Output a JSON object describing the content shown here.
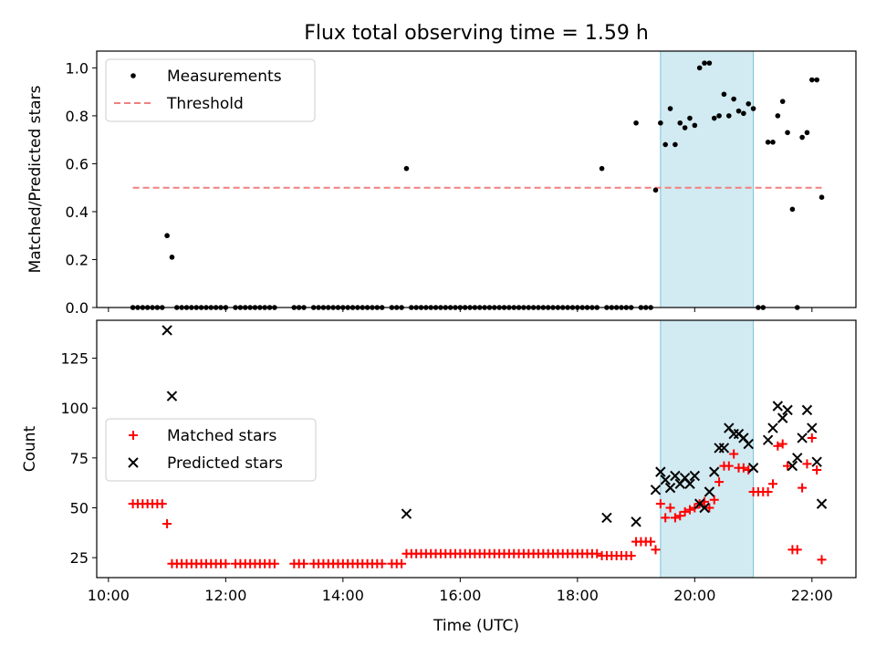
{
  "chart_data": [
    {
      "type": "scatter",
      "title": "Flux total observing time = 1.59 h",
      "ylabel": "Matched/Predicted stars",
      "ylim": [
        0,
        1.07
      ],
      "xlim_hours": [
        9.8,
        22.75
      ],
      "yticks": [
        "0.0",
        "0.2",
        "0.4",
        "0.6",
        "0.8",
        "1.0"
      ],
      "legend": {
        "position": "upper-left",
        "entries": [
          "Measurements",
          "Threshold"
        ]
      },
      "shaded_interval": {
        "start": "19:25",
        "end": "21:00",
        "color": "#add8e6"
      },
      "threshold": {
        "value": 0.5,
        "start": "10:25",
        "end": "22:10",
        "color": "#f08080"
      },
      "series": [
        {
          "name": "Measurements",
          "color": "#000000",
          "x": [
            "10:25",
            "10:30",
            "10:35",
            "10:40",
            "10:45",
            "10:50",
            "10:55",
            "11:00",
            "11:05",
            "11:10",
            "11:15",
            "11:20",
            "11:25",
            "11:30",
            "11:35",
            "11:40",
            "11:45",
            "11:50",
            "11:55",
            "12:00",
            "12:10",
            "12:15",
            "12:20",
            "12:25",
            "12:30",
            "12:35",
            "12:40",
            "12:45",
            "12:50",
            "13:10",
            "13:15",
            "13:20",
            "13:30",
            "13:35",
            "13:40",
            "13:45",
            "13:50",
            "13:55",
            "14:00",
            "14:05",
            "14:10",
            "14:15",
            "14:20",
            "14:25",
            "14:30",
            "14:35",
            "14:40",
            "14:50",
            "14:55",
            "15:00",
            "15:05",
            "15:10",
            "15:15",
            "15:20",
            "15:25",
            "15:30",
            "15:35",
            "15:40",
            "15:45",
            "15:50",
            "15:55",
            "16:00",
            "16:05",
            "16:10",
            "16:15",
            "16:20",
            "16:25",
            "16:30",
            "16:35",
            "16:40",
            "16:45",
            "16:50",
            "16:55",
            "17:00",
            "17:05",
            "17:10",
            "17:15",
            "17:20",
            "17:25",
            "17:30",
            "17:35",
            "17:40",
            "17:45",
            "17:50",
            "17:55",
            "18:00",
            "18:05",
            "18:10",
            "18:15",
            "18:20",
            "18:25",
            "18:30",
            "18:35",
            "18:40",
            "18:45",
            "18:50",
            "18:55",
            "19:00",
            "19:05",
            "19:10",
            "19:15",
            "19:20",
            "19:25",
            "19:30",
            "19:35",
            "19:40",
            "19:45",
            "19:50",
            "19:55",
            "20:00",
            "20:05",
            "20:10",
            "20:15",
            "20:20",
            "20:25",
            "20:30",
            "20:35",
            "20:40",
            "20:45",
            "20:50",
            "20:55",
            "21:00",
            "21:05",
            "21:10",
            "21:15",
            "21:20",
            "21:25",
            "21:30",
            "21:35",
            "21:40",
            "21:45",
            "21:50",
            "21:55",
            "22:00",
            "22:05",
            "22:10"
          ],
          "y": [
            0,
            0,
            0,
            0,
            0,
            0,
            0,
            0.3,
            0.21,
            0,
            0,
            0,
            0,
            0,
            0,
            0,
            0,
            0,
            0,
            0,
            0,
            0,
            0,
            0,
            0,
            0,
            0,
            0,
            0,
            0,
            0,
            0,
            0,
            0,
            0,
            0,
            0,
            0,
            0,
            0,
            0,
            0,
            0,
            0,
            0,
            0,
            0,
            0,
            0,
            0,
            0.58,
            0,
            0,
            0,
            0,
            0,
            0,
            0,
            0,
            0,
            0,
            0,
            0,
            0,
            0,
            0,
            0,
            0,
            0,
            0,
            0,
            0,
            0,
            0,
            0,
            0,
            0,
            0,
            0,
            0,
            0,
            0,
            0,
            0,
            0,
            0,
            0,
            0,
            0,
            0,
            0.58,
            0,
            0,
            0,
            0,
            0,
            0,
            0.77,
            0,
            0,
            0,
            0.49,
            0.77,
            0.68,
            0.83,
            0.68,
            0.77,
            0.75,
            0.79,
            0.76,
            1.0,
            1.02,
            1.02,
            0.79,
            0.8,
            0.89,
            0.8,
            0.87,
            0.82,
            0.81,
            0.85,
            0.83,
            0,
            0,
            0.69,
            0.69,
            0.8,
            0.86,
            0.73,
            0.41,
            0,
            0.71,
            0.73,
            0.95,
            0.95,
            0.46
          ]
        }
      ]
    },
    {
      "type": "scatter",
      "xlabel": "Time (UTC)",
      "ylabel": "Count",
      "ylim": [
        15,
        144
      ],
      "xlim_hours": [
        9.8,
        22.75
      ],
      "yticks": [
        "25",
        "50",
        "75",
        "100",
        "125"
      ],
      "xticks": [
        "10:00",
        "12:00",
        "14:00",
        "16:00",
        "18:00",
        "20:00",
        "22:00"
      ],
      "legend": {
        "position": "center-left",
        "entries": [
          "Matched stars",
          "Predicted stars"
        ]
      },
      "shaded_interval": {
        "start": "19:25",
        "end": "21:00",
        "color": "#add8e6"
      },
      "series": [
        {
          "name": "Matched stars",
          "marker": "plus",
          "color": "#ff0000",
          "x": [
            "10:25",
            "10:30",
            "10:35",
            "10:40",
            "10:45",
            "10:50",
            "10:55",
            "11:00",
            "11:05",
            "11:10",
            "11:15",
            "11:20",
            "11:25",
            "11:30",
            "11:35",
            "11:40",
            "11:45",
            "11:50",
            "11:55",
            "12:00",
            "12:10",
            "12:15",
            "12:20",
            "12:25",
            "12:30",
            "12:35",
            "12:40",
            "12:45",
            "12:50",
            "13:10",
            "13:15",
            "13:20",
            "13:30",
            "13:35",
            "13:40",
            "13:45",
            "13:50",
            "13:55",
            "14:00",
            "14:05",
            "14:10",
            "14:15",
            "14:20",
            "14:25",
            "14:30",
            "14:35",
            "14:40",
            "14:50",
            "14:55",
            "15:00",
            "15:05",
            "15:10",
            "15:15",
            "15:20",
            "15:25",
            "15:30",
            "15:35",
            "15:40",
            "15:45",
            "15:50",
            "15:55",
            "16:00",
            "16:05",
            "16:10",
            "16:15",
            "16:20",
            "16:25",
            "16:30",
            "16:35",
            "16:40",
            "16:45",
            "16:50",
            "16:55",
            "17:00",
            "17:05",
            "17:10",
            "17:15",
            "17:20",
            "17:25",
            "17:30",
            "17:35",
            "17:40",
            "17:45",
            "17:50",
            "17:55",
            "18:00",
            "18:05",
            "18:10",
            "18:15",
            "18:20",
            "18:25",
            "18:30",
            "18:35",
            "18:40",
            "18:45",
            "18:50",
            "18:55",
            "19:00",
            "19:05",
            "19:10",
            "19:15",
            "19:20",
            "19:25",
            "19:30",
            "19:35",
            "19:40",
            "19:45",
            "19:50",
            "19:55",
            "20:00",
            "20:05",
            "20:10",
            "20:15",
            "20:20",
            "20:25",
            "20:30",
            "20:35",
            "20:40",
            "20:45",
            "20:50",
            "20:55",
            "21:00",
            "21:05",
            "21:10",
            "21:15",
            "21:20",
            "21:25",
            "21:30",
            "21:35",
            "21:40",
            "21:45",
            "21:50",
            "21:55",
            "22:00",
            "22:05",
            "22:10"
          ],
          "y": [
            52,
            52,
            52,
            52,
            52,
            52,
            52,
            42,
            22,
            22,
            22,
            22,
            22,
            22,
            22,
            22,
            22,
            22,
            22,
            22,
            22,
            22,
            22,
            22,
            22,
            22,
            22,
            22,
            22,
            22,
            22,
            22,
            22,
            22,
            22,
            22,
            22,
            22,
            22,
            22,
            22,
            22,
            22,
            22,
            22,
            22,
            22,
            22,
            22,
            22,
            27,
            27,
            27,
            27,
            27,
            27,
            27,
            27,
            27,
            27,
            27,
            27,
            27,
            27,
            27,
            27,
            27,
            27,
            27,
            27,
            27,
            27,
            27,
            27,
            27,
            27,
            27,
            27,
            27,
            27,
            27,
            27,
            27,
            27,
            27,
            27,
            27,
            27,
            27,
            27,
            26,
            26,
            26,
            26,
            26,
            26,
            26,
            33,
            33,
            33,
            33,
            29,
            52,
            45,
            50,
            45,
            46,
            48,
            49,
            50,
            52,
            53,
            50,
            54,
            63,
            71,
            71,
            77,
            70,
            70,
            69,
            58,
            58,
            58,
            58,
            62,
            81,
            82,
            71,
            29,
            29,
            60,
            72,
            85,
            69,
            24
          ]
        },
        {
          "name": "Predicted stars",
          "marker": "x",
          "color": "#000000",
          "x": [
            "11:00",
            "11:05",
            "15:05",
            "18:30",
            "19:00",
            "19:20",
            "19:25",
            "19:30",
            "19:35",
            "19:40",
            "19:45",
            "19:50",
            "19:55",
            "20:00",
            "20:05",
            "20:10",
            "20:15",
            "20:20",
            "20:25",
            "20:30",
            "20:35",
            "20:40",
            "20:45",
            "20:50",
            "20:55",
            "21:00",
            "21:15",
            "21:20",
            "21:25",
            "21:30",
            "21:35",
            "21:40",
            "21:45",
            "21:50",
            "21:55",
            "22:00",
            "22:05",
            "22:10"
          ],
          "y": [
            139,
            106,
            47,
            45,
            43,
            59,
            68,
            64,
            60,
            66,
            62,
            65,
            62,
            66,
            52,
            50,
            58,
            68,
            80,
            80,
            90,
            87,
            87,
            85,
            82,
            70,
            84,
            90,
            101,
            95,
            99,
            71,
            75,
            85,
            99,
            90,
            73,
            52
          ]
        }
      ]
    }
  ]
}
